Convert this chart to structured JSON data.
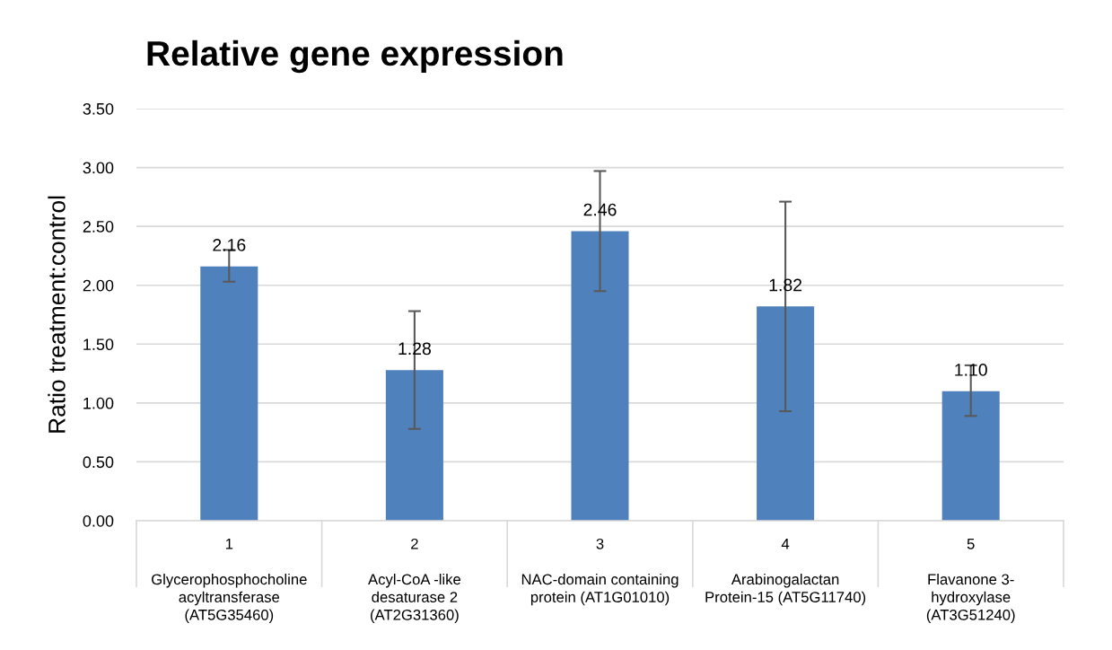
{
  "chart_data": {
    "type": "bar",
    "title": "Relative gene expression",
    "ylabel": "Ratio treatment:control",
    "categories": [
      "1\n\nGlycerophosphocholine\nacyltransferase\n(AT5G35460)",
      "2\n\nAcyl-CoA -like\ndesaturase 2\n(AT2G31360)",
      "3\n\nNAC-domain containing\nprotein (AT1G01010)\n ",
      "4\n\nArabinogalactan\nProtein-15 (AT5G11740)\n ",
      "5\n\nFlavanone 3-\nhydroxylase\n(AT3G51240)"
    ],
    "values": [
      2.16,
      1.28,
      2.46,
      1.82,
      1.1
    ],
    "value_labels": [
      "2.16",
      "1.28",
      "2.46",
      "1.82",
      "1.10"
    ],
    "errors": [
      [
        2.03,
        2.3
      ],
      [
        0.78,
        1.78
      ],
      [
        1.95,
        2.97
      ],
      [
        0.93,
        2.71
      ],
      [
        0.89,
        1.32
      ]
    ],
    "color": "#4f81bd",
    "ylim": [
      0,
      3.5
    ],
    "yticks": [
      {
        "value": 0,
        "label": "0.00"
      },
      {
        "value": 0.5,
        "label": "0.50"
      },
      {
        "value": 1,
        "label": "1.00"
      },
      {
        "value": 1.5,
        "label": "1.50"
      },
      {
        "value": 2,
        "label": "2.00"
      },
      {
        "value": 2.5,
        "label": "2.50"
      },
      {
        "value": 3,
        "label": "3.00"
      },
      {
        "value": 3.5,
        "label": "3.50"
      }
    ],
    "grid": "y"
  }
}
